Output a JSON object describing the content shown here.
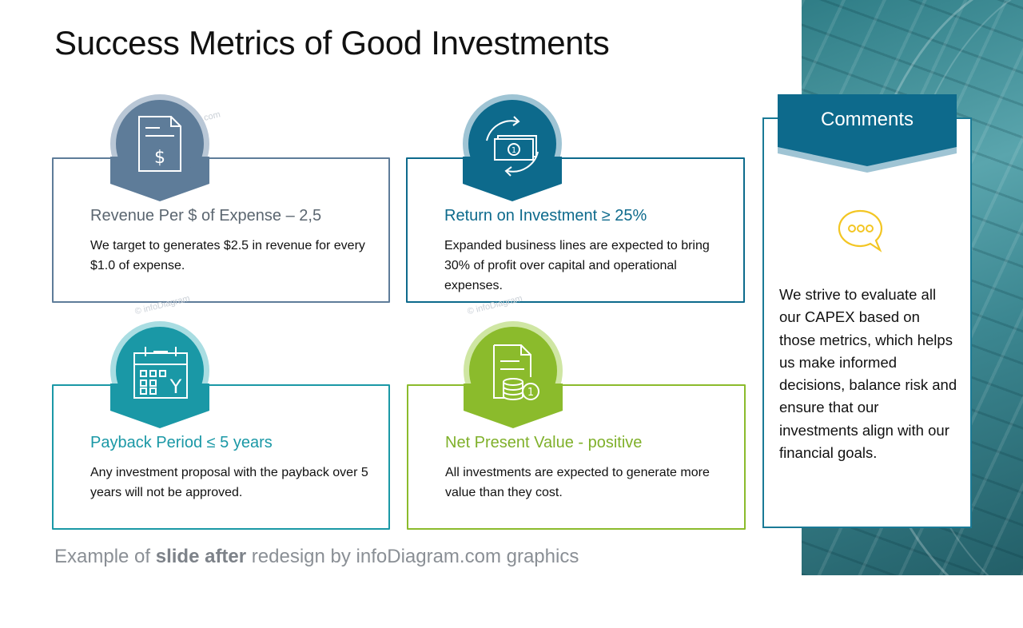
{
  "title": "Success Metrics of Good Investments",
  "colors": {
    "slate": "#5e7c99",
    "navy_teal": "#0d6a8c",
    "teal": "#1a98a6",
    "green": "#8bbb2c",
    "comment_yellow": "#f3c623"
  },
  "metrics": [
    {
      "icon": "document-dollar-icon",
      "heading": "Revenue Per $ of Expense – 2,5",
      "description": "We target to generates $2.5 in revenue for every $1.0 of expense."
    },
    {
      "icon": "money-cycle-icon",
      "heading": "Return on Investment ≥ 25%",
      "description": "Expanded business lines are expected to bring 30% of profit over capital and operational expenses."
    },
    {
      "icon": "calendar-year-icon",
      "heading": "Payback Period ≤ 5 years",
      "description": "Any investment proposal with the payback over 5 years will not be approved."
    },
    {
      "icon": "document-coins-icon",
      "heading": "Net Present Value - positive",
      "description": "All investments are expected to generate more value than they cost."
    }
  ],
  "comments": {
    "title": "Comments",
    "icon": "speech-bubble-icon",
    "text": "We strive to evaluate all our CAPEX based on those metrics, which helps us make informed decisions, balance risk and ensure that our investments align with our financial goals."
  },
  "footer": {
    "prefix": "Example of ",
    "bold": "slide after",
    "suffix": " redesign by infoDiagram.com graphics"
  }
}
